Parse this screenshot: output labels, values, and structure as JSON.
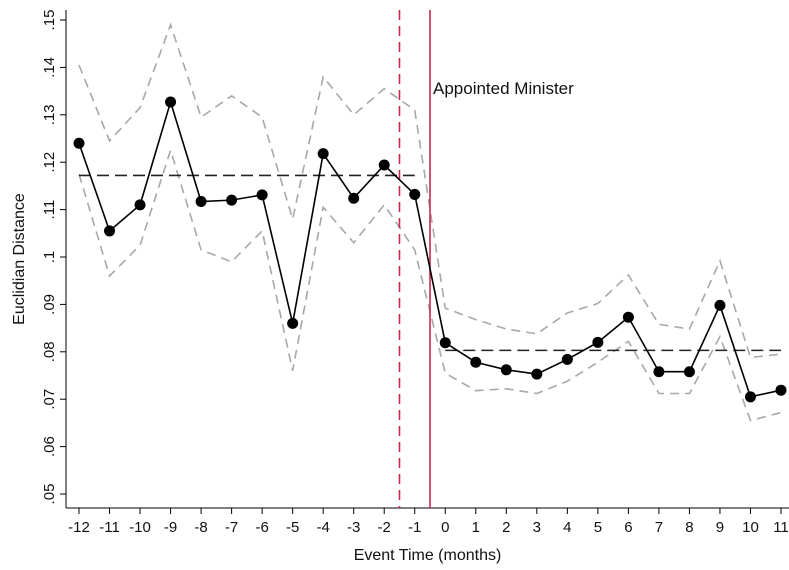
{
  "chart_data": {
    "type": "line",
    "xlabel": "Event Time (months)",
    "ylabel": "Euclidian Distance",
    "xlim": [
      -12,
      11
    ],
    "ylim": [
      0.05,
      0.15
    ],
    "x_ticks": [
      "-12",
      "-11",
      "-10",
      "-9",
      "-8",
      "-7",
      "-6",
      "-5",
      "-4",
      "-3",
      "-2",
      "-1",
      "0",
      "1",
      "2",
      "3",
      "4",
      "5",
      "6",
      "7",
      "8",
      "9",
      "10",
      "11"
    ],
    "y_ticks": [
      ".05",
      ".06",
      ".07",
      ".08",
      ".09",
      ".1",
      ".11",
      ".12",
      ".13",
      ".14",
      ".15"
    ],
    "grid": false,
    "x": [
      -12,
      -11,
      -10,
      -9,
      -8,
      -7,
      -6,
      -5,
      -4,
      -3,
      -2,
      -1,
      0,
      1,
      2,
      3,
      4,
      5,
      6,
      7,
      8,
      9,
      10,
      11
    ],
    "series": [
      {
        "role": "estimate",
        "values": [
          0.124,
          0.1055,
          0.111,
          0.1327,
          0.1117,
          0.112,
          0.1131,
          0.086,
          0.1218,
          0.1124,
          0.1194,
          0.1132,
          0.0819,
          0.0778,
          0.0762,
          0.0753,
          0.0784,
          0.082,
          0.0873,
          0.0758,
          0.0758,
          0.0898,
          0.0705,
          0.0719
        ]
      },
      {
        "role": "upper_ci",
        "values": [
          0.1405,
          0.1245,
          0.1315,
          0.149,
          0.1295,
          0.134,
          0.1295,
          0.108,
          0.138,
          0.13,
          0.1355,
          0.131,
          0.0892,
          0.0868,
          0.0848,
          0.0838,
          0.0882,
          0.0902,
          0.0962,
          0.0858,
          0.0848,
          0.0992,
          0.0788,
          0.0795
        ]
      },
      {
        "role": "lower_ci",
        "values": [
          0.1175,
          0.096,
          0.1025,
          0.1225,
          0.1015,
          0.099,
          0.1055,
          0.076,
          0.1105,
          0.103,
          0.111,
          0.1015,
          0.0755,
          0.0718,
          0.0722,
          0.0712,
          0.0738,
          0.0778,
          0.0822,
          0.0712,
          0.0712,
          0.0832,
          0.0655,
          0.0672
        ]
      }
    ],
    "pre_mean": {
      "value": 0.1172,
      "x_from": -12,
      "x_to": -1
    },
    "post_mean": {
      "value": 0.0803,
      "x_from": 0,
      "x_to": 11
    },
    "vlines": [
      {
        "x": -1.5,
        "style": "dashed",
        "color": "#c8284e"
      },
      {
        "x": -0.5,
        "style": "solid",
        "color": "#c8284e"
      }
    ],
    "annotation": "Appointed Minister",
    "colors": {
      "estimate": "#000000",
      "ci": "#a8a8a8",
      "mean": "#222222",
      "event": "#c8284e"
    }
  }
}
